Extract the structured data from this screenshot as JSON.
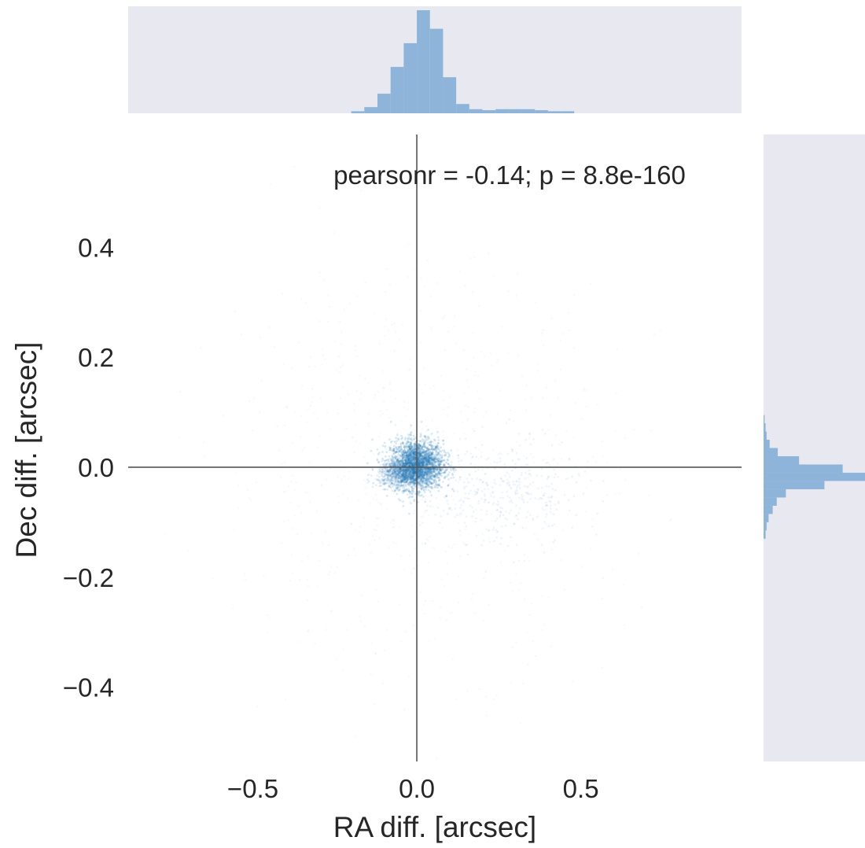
{
  "chart_data": {
    "type": "scatter",
    "title": "",
    "xlabel": "RA diff. [arcsec]",
    "ylabel": "Dec diff. [arcsec]",
    "xlim": [
      -0.88,
      0.99
    ],
    "ylim": [
      -0.535,
      0.605
    ],
    "x_ticks": [
      -0.5,
      0.0,
      0.5
    ],
    "x_tick_labels": [
      "−0.5",
      "0.0",
      "0.5"
    ],
    "y_ticks": [
      -0.4,
      -0.2,
      0.0,
      0.2,
      0.4
    ],
    "y_tick_labels": [
      "−0.4",
      "−0.2",
      "0.0",
      "0.2",
      "0.4"
    ],
    "annotation": "pearsonr = -0.14; p = 8.8e-160",
    "reference_lines": {
      "x": 0.0,
      "y": 0.0
    },
    "point_color": "#1f77b4",
    "hist_color": "#8fb4d9",
    "marginal_background": "#e8e8f0",
    "x_histogram": {
      "bin_edges": [
        -0.2,
        -0.16,
        -0.12,
        -0.08,
        -0.04,
        0.0,
        0.04,
        0.08,
        0.12,
        0.16,
        0.2,
        0.24,
        0.28,
        0.32,
        0.36,
        0.4,
        0.44,
        0.48
      ],
      "counts": [
        2,
        6,
        19,
        45,
        68,
        100,
        82,
        35,
        9,
        4,
        3,
        4,
        4,
        4,
        3,
        2,
        2
      ]
    },
    "y_histogram": {
      "bin_edges": [
        -0.13,
        -0.115,
        -0.1,
        -0.085,
        -0.07,
        -0.055,
        -0.04,
        -0.025,
        -0.01,
        0.005,
        0.02,
        0.035,
        0.05,
        0.065,
        0.08,
        0.095
      ],
      "counts": [
        2,
        3,
        5,
        9,
        13,
        22,
        60,
        100,
        78,
        35,
        14,
        6,
        3,
        2,
        1
      ]
    }
  }
}
